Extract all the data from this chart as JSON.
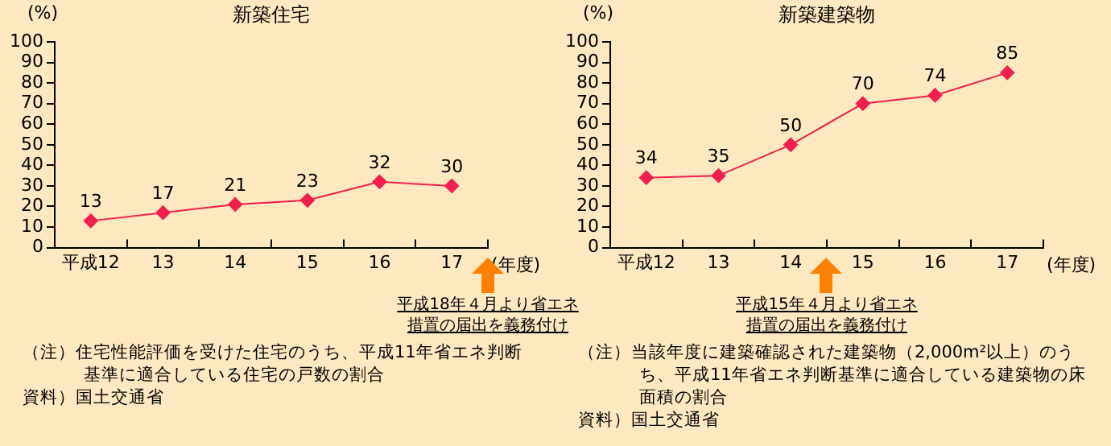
{
  "chart_data": [
    {
      "type": "line",
      "title": "新築住宅",
      "xlabel": "(年度)",
      "ylabel": "(%)",
      "categories": [
        "平成12",
        "13",
        "14",
        "15",
        "16",
        "17"
      ],
      "values": [
        13,
        17,
        21,
        23,
        32,
        30
      ],
      "color": "#f0204c",
      "ylim": [
        0,
        100
      ],
      "yticks": [
        0,
        10,
        20,
        30,
        40,
        50,
        60,
        70,
        80,
        90,
        100
      ],
      "grid": false,
      "legend": false,
      "marker": "diamond",
      "line_style": "solid",
      "data_labels": true,
      "annotations": [
        "平成18年４月より省エネ措置の届出を義務付け",
        "（注）住宅性能評価を受けた住宅のうち、平成11年省エネ判断基準に適合している住宅の戸数の割合",
        "資料）国土交通省"
      ]
    },
    {
      "type": "line",
      "title": "新築建築物",
      "xlabel": "(年度)",
      "ylabel": "(%)",
      "categories": [
        "平成12",
        "13",
        "14",
        "15",
        "16",
        "17"
      ],
      "values": [
        34,
        35,
        50,
        70,
        74,
        85
      ],
      "color": "#f0204c",
      "ylim": [
        0,
        100
      ],
      "yticks": [
        0,
        10,
        20,
        30,
        40,
        50,
        60,
        70,
        80,
        90,
        100
      ],
      "grid": false,
      "legend": false,
      "marker": "diamond",
      "line_style": "solid",
      "data_labels": true,
      "annotations": [
        "平成15年４月より省エネ措置の届出を義務付け",
        "（注）当該年度に建築確認された建築物（2,000m²以上）のうち、平成11年省エネ判断基準に適合している建築物の床面積の割合",
        "資料）国土交通省"
      ]
    }
  ]
}
